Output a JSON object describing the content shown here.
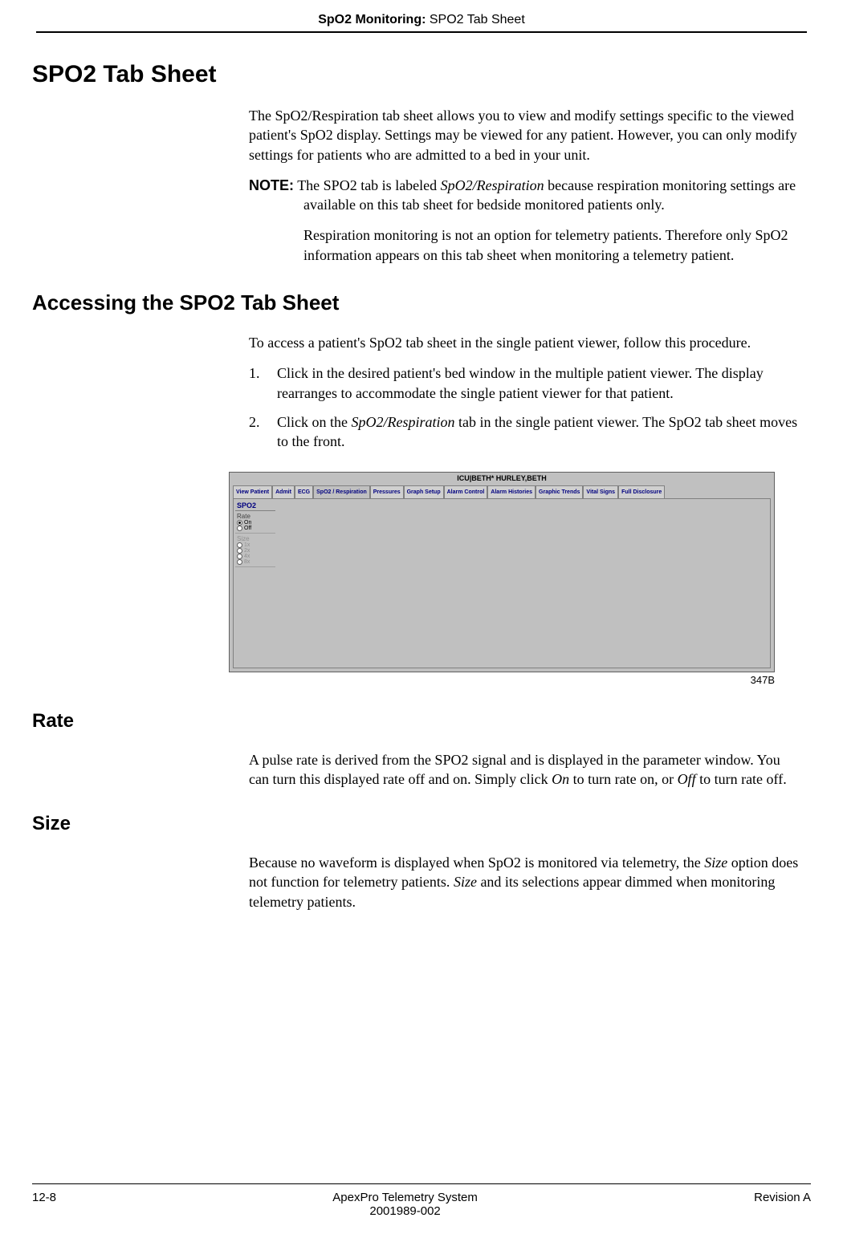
{
  "header": {
    "section": "SpO2 Monitoring: ",
    "page": "SPO2 Tab Sheet"
  },
  "h1": "SPO2 Tab Sheet",
  "intro": "The SpO2/Respiration tab sheet allows you to view and modify settings specific to the viewed patient's SpO2 display. Settings may be viewed for any patient. However, you can only modify settings for patients who are admitted to a bed in your unit.",
  "note": {
    "label": "NOTE:",
    "p1a": "The SPO2 tab is labeled ",
    "p1b": "SpO2/Respiration",
    "p1c": " because respiration monitoring settings are available on this tab sheet for bedside monitored patients only.",
    "p2": "Respiration monitoring is not an option for telemetry patients. Therefore only SpO2 information appears on this tab sheet when monitoring a telemetry patient."
  },
  "h2": "Accessing the SPO2 Tab Sheet",
  "access_intro": "To access a patient's SpO2 tab sheet in the single patient viewer, follow this procedure.",
  "steps": {
    "s1num": "1.",
    "s1": "Click in the desired patient's bed window in the multiple patient viewer. The display rearranges to accommodate the single patient viewer for that patient.",
    "s2num": "2.",
    "s2a": "Click on the ",
    "s2b": "SpO2/Respiration",
    "s2c": " tab in the single patient viewer. The SpO2 tab sheet moves to the front."
  },
  "screenshot": {
    "title": "ICU|BETH*      HURLEY,BETH",
    "tabs": [
      "View Patient",
      "Admit",
      "ECG",
      "SpO2 / Respiration",
      "Pressures",
      "Graph Setup",
      "Alarm Control",
      "Alarm Histories",
      "Graphic Trends",
      "Vital Signs",
      "Full Disclosure"
    ],
    "active_tab_index": 3,
    "panel_title": "SPO2",
    "rate_label": "Rate",
    "rate_options": [
      "On",
      "Off"
    ],
    "rate_selected": 0,
    "size_label": "Size",
    "size_options": [
      "1x",
      "2x",
      "4x",
      "8x"
    ]
  },
  "fig_label": "347B",
  "rate": {
    "heading": "Rate",
    "p1": "A pulse rate is derived from the SPO2 signal and is displayed in the parameter window. You can turn this displayed rate off and on. Simply click ",
    "p2": "On",
    "p3": " to turn rate on, or ",
    "p4": "Off",
    "p5": " to turn rate off."
  },
  "size": {
    "heading": "Size",
    "p1": "Because no waveform is displayed when SpO2 is monitored via telemetry, the ",
    "p2": "Size",
    "p3": " option does not function for telemetry patients. ",
    "p4": "Size",
    "p5": " and its selections appear dimmed when monitoring telemetry patients."
  },
  "footer": {
    "left": "12-8",
    "center1": "ApexPro Telemetry System",
    "center2": "2001989-002",
    "right": "Revision A"
  }
}
